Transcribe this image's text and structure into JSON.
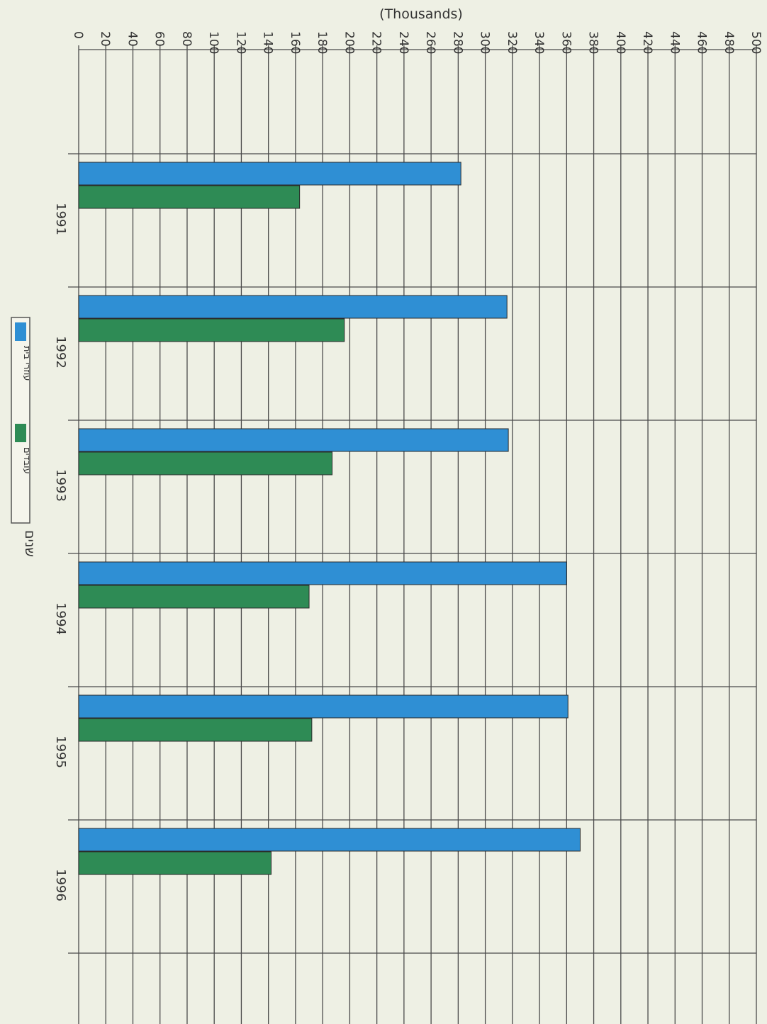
{
  "chart_data": {
    "type": "bar",
    "orientation": "horizontal",
    "title": "שנים",
    "xlabel": "(Thousands)",
    "xlim": [
      0,
      500
    ],
    "x_ticks": [
      0,
      20,
      40,
      60,
      80,
      100,
      120,
      140,
      160,
      180,
      200,
      220,
      240,
      260,
      280,
      300,
      320,
      340,
      360,
      380,
      400,
      420,
      440,
      460,
      480,
      500
    ],
    "categories": [
      "1991",
      "1992",
      "1993",
      "1994",
      "1995",
      "1996"
    ],
    "series": [
      {
        "name": "עוזרי בית",
        "color": "#2f8fd4",
        "values": [
          282,
          316,
          317,
          360,
          361,
          370
        ]
      },
      {
        "name": "עובדים",
        "color": "#2e8b55",
        "values": [
          163,
          196,
          187,
          170,
          172,
          142
        ]
      }
    ],
    "grid": true,
    "legend_placement": "left-middle"
  }
}
